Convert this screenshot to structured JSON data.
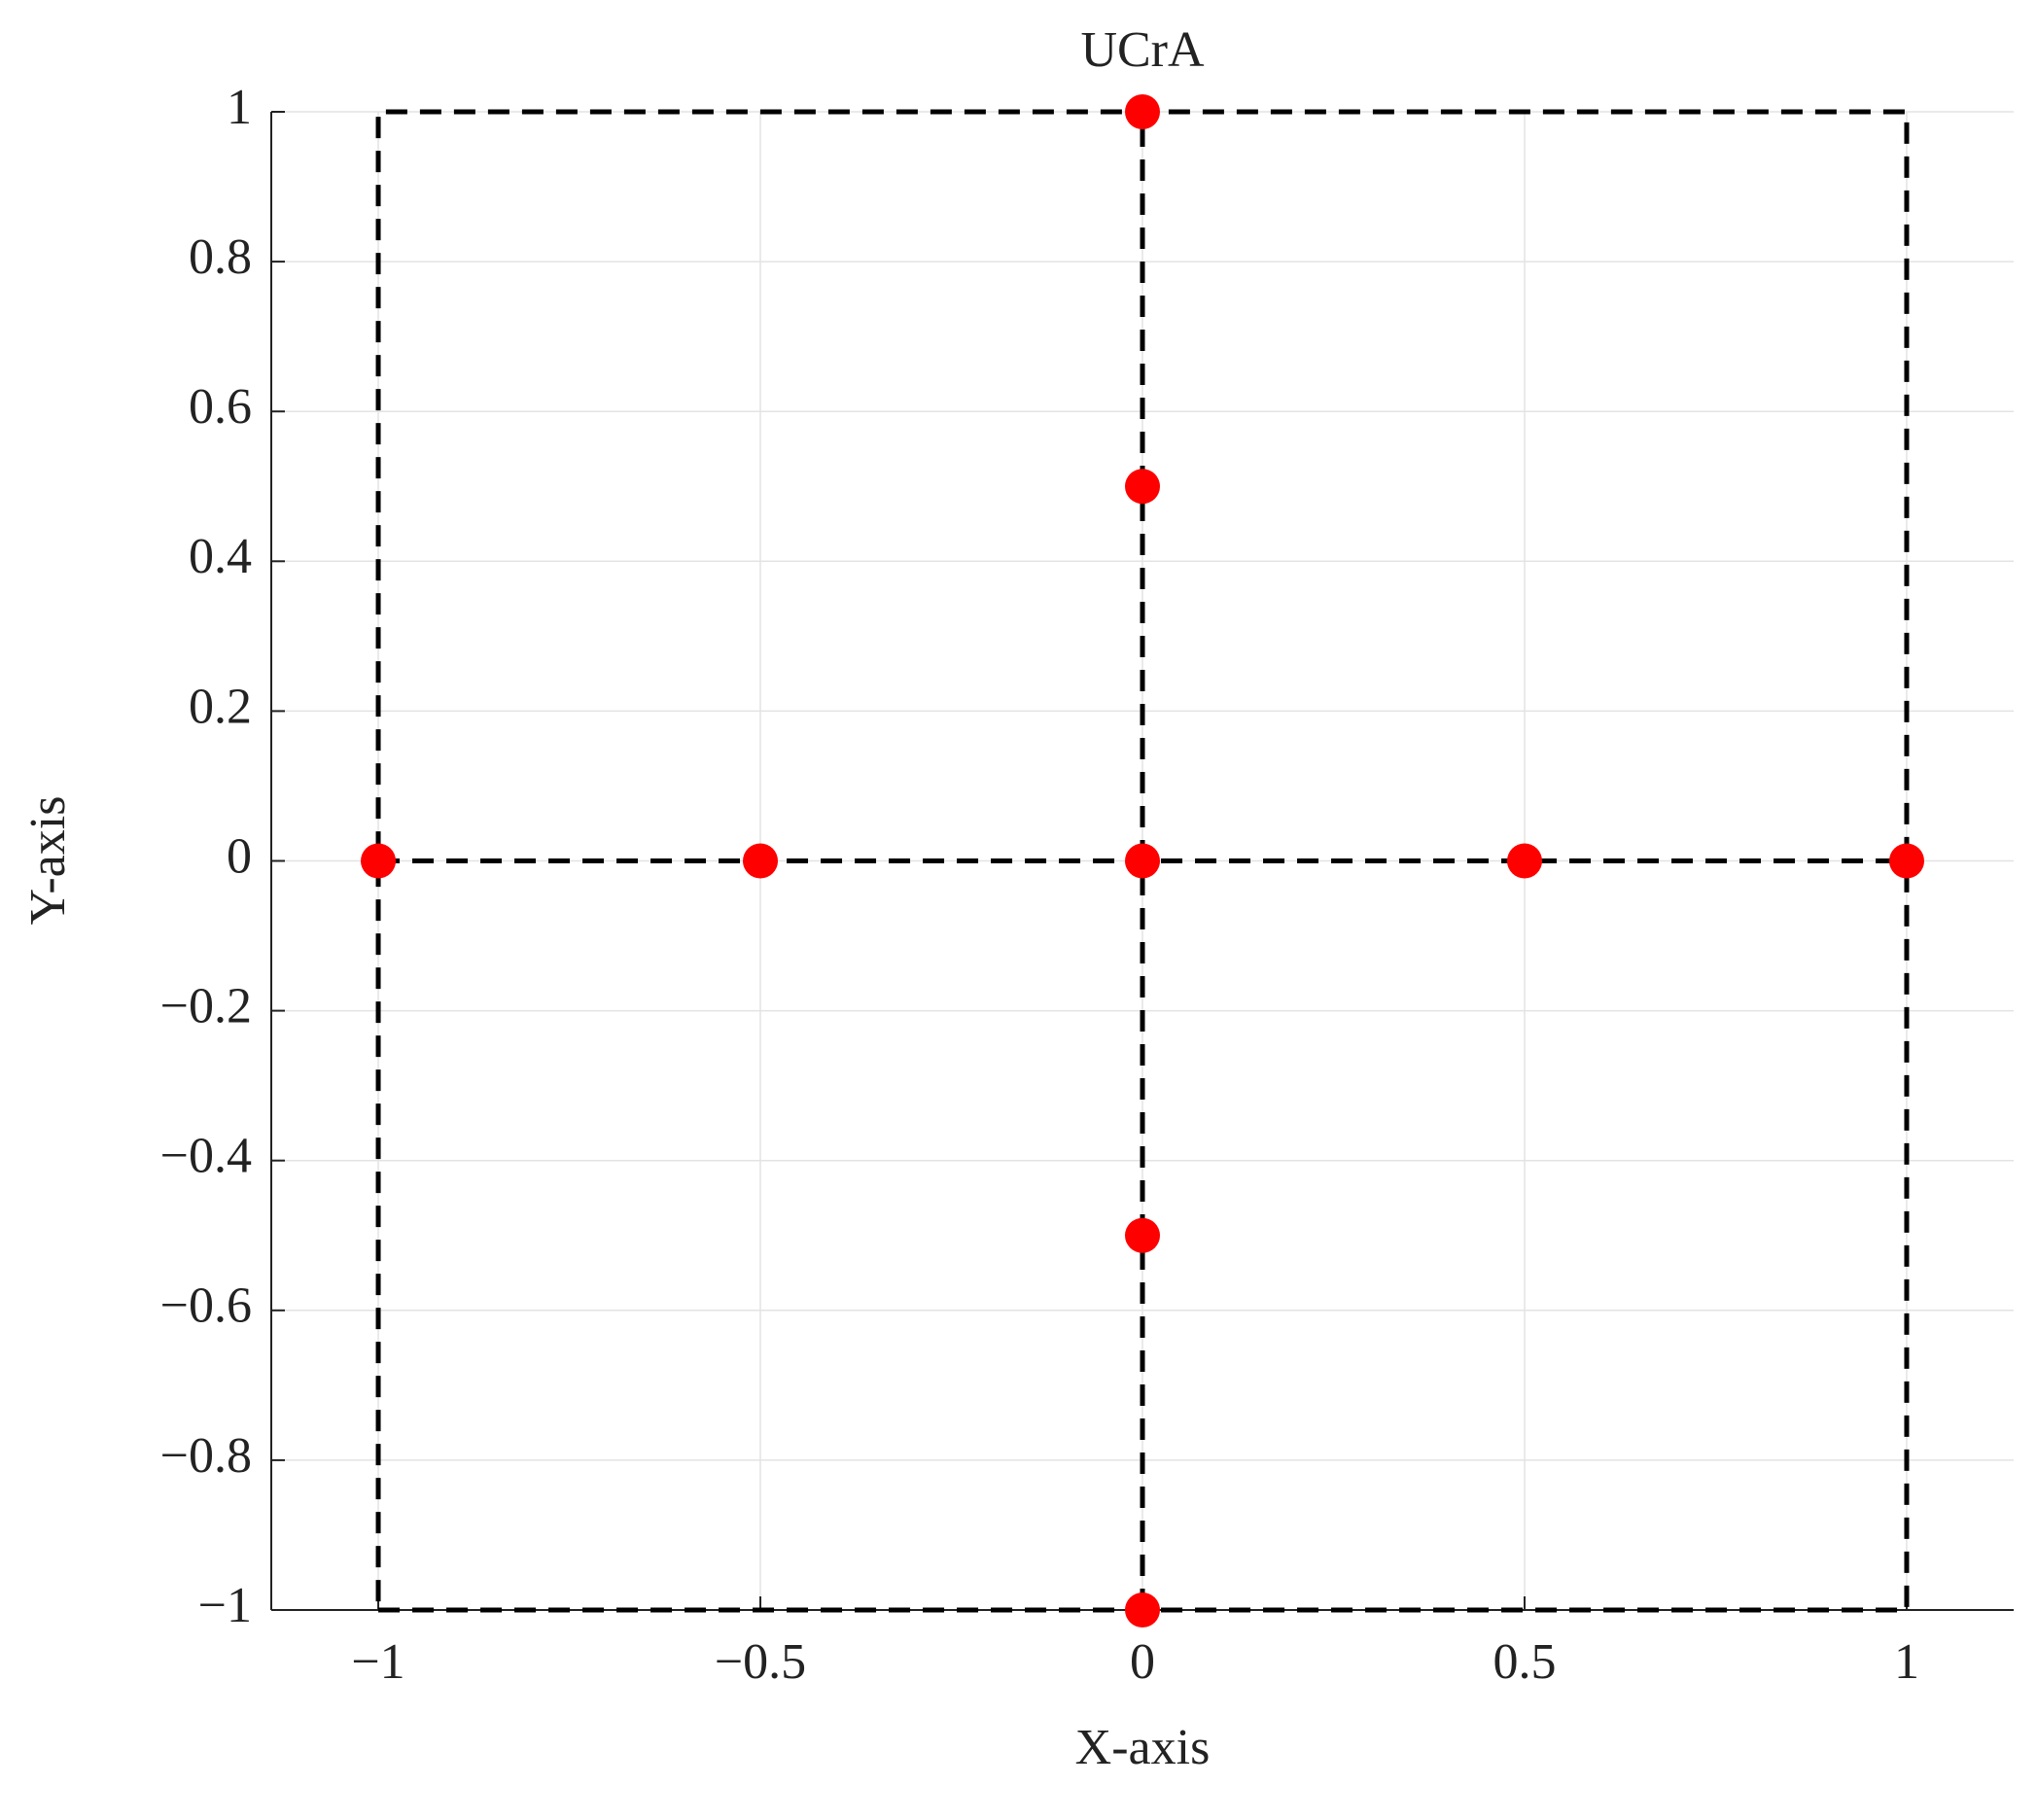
{
  "chart_data": {
    "type": "scatter",
    "title": "UCrA",
    "x_label": "X-axis",
    "y_label": "Y-axis",
    "series": [
      {
        "color": "#ff0000",
        "x": [
          -1,
          -0.5,
          0,
          0.5,
          1,
          0,
          0,
          0,
          0
        ],
        "y": [
          0,
          0,
          0,
          0,
          0,
          1,
          0.5,
          -0.5,
          -1
        ]
      }
    ],
    "lines": [
      {
        "color": "#000000",
        "style": "dashed",
        "x": [
          -1,
          1,
          1,
          -1,
          -1
        ],
        "y": [
          -1,
          -1,
          1,
          1,
          -1
        ]
      },
      {
        "color": "#000000",
        "style": "dashed",
        "x": [
          -1,
          1
        ],
        "y": [
          0,
          0
        ]
      },
      {
        "color": "#000000",
        "style": "dashed",
        "x": [
          0,
          0
        ],
        "y": [
          -1,
          1
        ]
      }
    ],
    "xlim": [
      -1.14,
      1.14
    ],
    "ylim": [
      -1,
      1
    ],
    "xticks": [
      {
        "value": -1,
        "label": "−1"
      },
      {
        "value": -0.5,
        "label": "−0.5"
      },
      0,
      0.5,
      1
    ],
    "yticks": [
      {
        "value": -1,
        "label": "−1"
      },
      {
        "value": -0.8,
        "label": "−0.8"
      },
      {
        "value": -0.6,
        "label": "−0.6"
      },
      {
        "value": -0.4,
        "label": "−0.4"
      },
      {
        "value": -0.2,
        "label": "−0.2"
      },
      0,
      0.2,
      0.4,
      0.6,
      0.8,
      1
    ],
    "grid": true
  }
}
